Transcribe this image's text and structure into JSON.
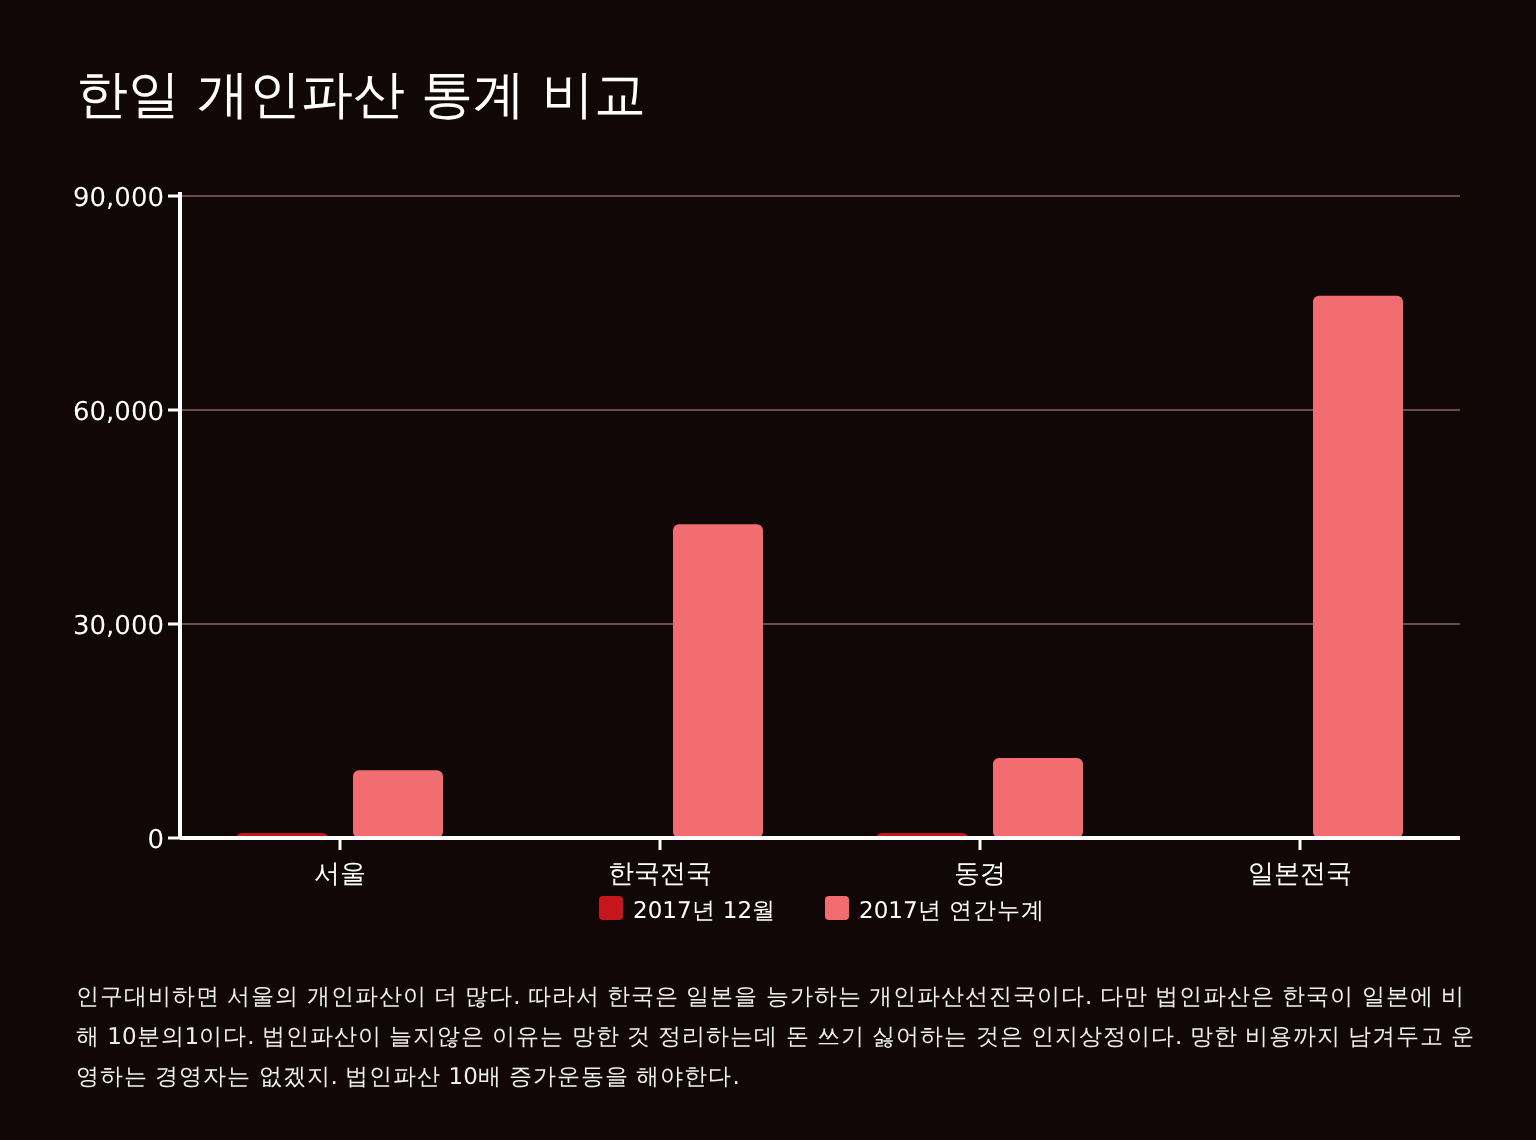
{
  "chart_data": {
    "type": "bar",
    "title": "한일 개인파산 통계 비교",
    "categories": [
      "서울",
      "한국전국",
      "동경",
      "일본전국"
    ],
    "series": [
      {
        "name": "2017년 12월",
        "color": "#c8161d",
        "values": [
          700,
          null,
          700,
          null
        ]
      },
      {
        "name": "2017년 연간누계",
        "color": "#f26d6f",
        "values": [
          9500,
          44000,
          11200,
          76000
        ]
      }
    ],
    "ylim": [
      0,
      90000
    ],
    "yticks": [
      {
        "value": 0,
        "label": "0"
      },
      {
        "value": 30000,
        "label": "30,000"
      },
      {
        "value": 60000,
        "label": "60,000"
      },
      {
        "value": 90000,
        "label": "90,000"
      }
    ],
    "grid": "y",
    "legend": "bottom",
    "annotations": [
      "인구대비하면 서울의 개인파산이 더 많다. 따라서 한국은 일본을 능가하는 개인파산선진국이다. 다만 법인파산은 한국이 일본에 비해 10분의1이다. 법인파산이 늘지않은 이유는 망한 것 정리하는데 돈 쓰기 싫어하는 것은 인지상정이다. 망한 비용까지 남겨두고 운영하는 경영자는 없겠지. 법인파산 10배 증가운동을 해야한다."
    ]
  }
}
